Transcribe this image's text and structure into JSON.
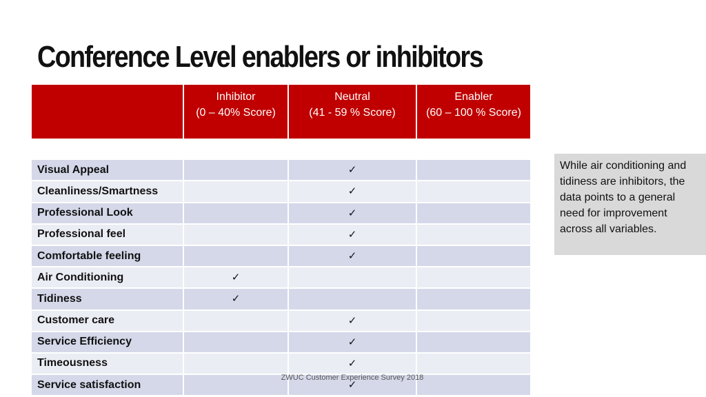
{
  "title": "Conference Level enablers or inhibitors",
  "table": {
    "headers": [
      {
        "line1": "",
        "line2": ""
      },
      {
        "line1": "Inhibitor",
        "line2": "(0 – 40% Score)"
      },
      {
        "line1": "Neutral",
        "line2": "(41 - 59 % Score)"
      },
      {
        "line1": "Enabler",
        "line2": "(60 – 100 % Score)"
      }
    ],
    "check_symbol": "✓",
    "rows": [
      {
        "label": "Visual Appeal",
        "inhibitor": "",
        "neutral": "✓",
        "enabler": ""
      },
      {
        "label": "Cleanliness/Smartness",
        "inhibitor": "",
        "neutral": "✓",
        "enabler": ""
      },
      {
        "label": "Professional Look",
        "inhibitor": "",
        "neutral": "✓",
        "enabler": ""
      },
      {
        "label": "Professional feel",
        "inhibitor": "",
        "neutral": "✓",
        "enabler": ""
      },
      {
        "label": "Comfortable feeling",
        "inhibitor": "",
        "neutral": "✓",
        "enabler": ""
      },
      {
        "label": "Air Conditioning",
        "inhibitor": "✓",
        "neutral": "",
        "enabler": ""
      },
      {
        "label": "Tidiness",
        "inhibitor": "✓",
        "neutral": "",
        "enabler": ""
      },
      {
        "label": "Customer care",
        "inhibitor": "",
        "neutral": "✓",
        "enabler": ""
      },
      {
        "label": "Service Efficiency",
        "inhibitor": "",
        "neutral": "✓",
        "enabler": ""
      },
      {
        "label": "Timeousness",
        "inhibitor": "",
        "neutral": "✓",
        "enabler": ""
      },
      {
        "label": "Service satisfaction",
        "inhibitor": "",
        "neutral": "✓",
        "enabler": ""
      }
    ]
  },
  "note": "While air conditioning and tidiness are inhibitors, the data points to a general need for improvement across all variables.",
  "footer": "ZWUC Customer Experience Survey 2018",
  "colors": {
    "header_red": "#c00000",
    "row_dark": "#d4d8e9",
    "row_light": "#ebedf4",
    "note_bg": "#d9d9d9"
  }
}
